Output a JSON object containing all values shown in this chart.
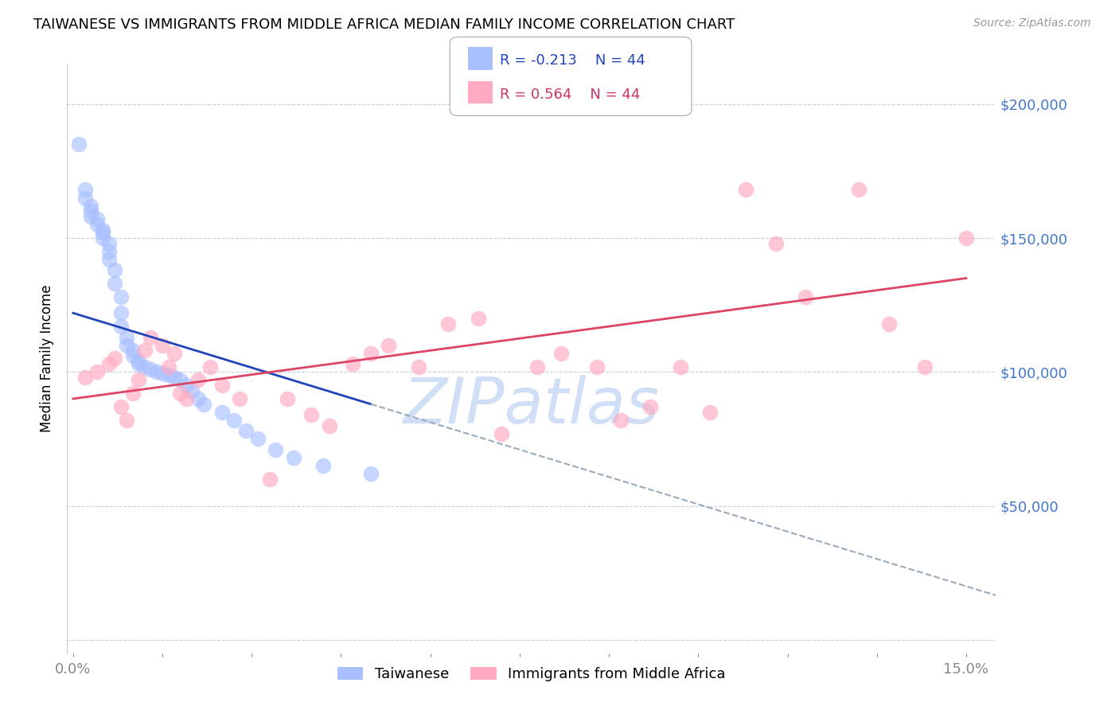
{
  "title": "TAIWANESE VS IMMIGRANTS FROM MIDDLE AFRICA MEDIAN FAMILY INCOME CORRELATION CHART",
  "source": "Source: ZipAtlas.com",
  "ylabel": "Median Family Income",
  "yticks": [
    0,
    50000,
    100000,
    150000,
    200000
  ],
  "ytick_labels": [
    "",
    "$50,000",
    "$100,000",
    "$150,000",
    "$200,000"
  ],
  "ylim": [
    -5000,
    215000
  ],
  "xlim": [
    -0.001,
    0.155
  ],
  "legend1_r": "-0.213",
  "legend1_n": "44",
  "legend2_r": "0.564",
  "legend2_n": "44",
  "legend1_label": "Taiwanese",
  "legend2_label": "Immigrants from Middle Africa",
  "blue_scatter_color": "#a8c0ff",
  "pink_scatter_color": "#ffaac0",
  "trend_blue_color": "#2244bb",
  "trend_pink_color": "#dd4466",
  "dashed_blue_color": "#99aabb",
  "watermark": "ZIPatlas",
  "watermark_color": "#d0dff5",
  "blue_x": [
    0.001,
    0.002,
    0.002,
    0.003,
    0.003,
    0.003,
    0.004,
    0.004,
    0.005,
    0.005,
    0.005,
    0.006,
    0.006,
    0.006,
    0.007,
    0.007,
    0.008,
    0.008,
    0.008,
    0.009,
    0.009,
    0.01,
    0.01,
    0.011,
    0.011,
    0.012,
    0.013,
    0.014,
    0.015,
    0.016,
    0.017,
    0.018,
    0.019,
    0.02,
    0.021,
    0.022,
    0.025,
    0.027,
    0.029,
    0.031,
    0.034,
    0.037,
    0.042,
    0.05
  ],
  "blue_y": [
    185000,
    168000,
    165000,
    162000,
    160000,
    158000,
    157000,
    155000,
    153000,
    152000,
    150000,
    148000,
    145000,
    142000,
    138000,
    133000,
    128000,
    122000,
    117000,
    113000,
    110000,
    108000,
    106000,
    104000,
    103000,
    102000,
    101000,
    100000,
    99500,
    99000,
    98000,
    97000,
    95000,
    93000,
    90000,
    88000,
    85000,
    82000,
    78000,
    75000,
    71000,
    68000,
    65000,
    62000
  ],
  "pink_x": [
    0.002,
    0.004,
    0.006,
    0.007,
    0.008,
    0.009,
    0.01,
    0.011,
    0.012,
    0.013,
    0.015,
    0.016,
    0.017,
    0.018,
    0.019,
    0.021,
    0.023,
    0.025,
    0.028,
    0.033,
    0.036,
    0.04,
    0.043,
    0.047,
    0.05,
    0.053,
    0.058,
    0.063,
    0.068,
    0.072,
    0.078,
    0.082,
    0.088,
    0.092,
    0.097,
    0.102,
    0.107,
    0.113,
    0.118,
    0.123,
    0.132,
    0.137,
    0.143,
    0.15
  ],
  "pink_y": [
    98000,
    100000,
    103000,
    105000,
    87000,
    82000,
    92000,
    97000,
    108000,
    113000,
    110000,
    102000,
    107000,
    92000,
    90000,
    97000,
    102000,
    95000,
    90000,
    60000,
    90000,
    84000,
    80000,
    103000,
    107000,
    110000,
    102000,
    118000,
    120000,
    77000,
    102000,
    107000,
    102000,
    82000,
    87000,
    102000,
    85000,
    168000,
    148000,
    128000,
    168000,
    118000,
    102000,
    150000
  ]
}
